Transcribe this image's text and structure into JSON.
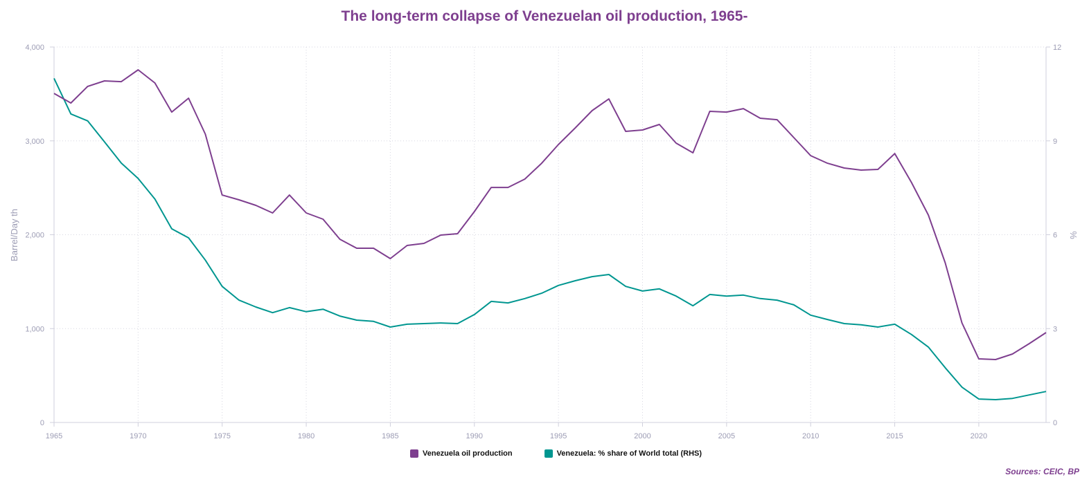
{
  "chart_data": {
    "type": "line",
    "title": "The long-term collapse of Venezuelan oil production, 1965-",
    "ylabel": "Barrel/Day th",
    "y2label": "%",
    "xlim": [
      1965,
      2024
    ],
    "ylim": [
      0,
      4000
    ],
    "y2lim": [
      0,
      12
    ],
    "x_ticks": [
      1965,
      1970,
      1975,
      1980,
      1985,
      1990,
      1995,
      2000,
      2005,
      2010,
      2015,
      2020
    ],
    "y_ticks": [
      "0",
      "1,000",
      "2,000",
      "3,000",
      "4,000"
    ],
    "y2_ticks": [
      "0",
      "3",
      "6",
      "9",
      "12"
    ],
    "grid": true,
    "legend_position": "bottom",
    "x": [
      1965,
      1966,
      1967,
      1968,
      1969,
      1970,
      1971,
      1972,
      1973,
      1974,
      1975,
      1976,
      1977,
      1978,
      1979,
      1980,
      1981,
      1982,
      1983,
      1984,
      1985,
      1986,
      1987,
      1988,
      1989,
      1990,
      1991,
      1992,
      1993,
      1994,
      1995,
      1996,
      1997,
      1998,
      1999,
      2000,
      2001,
      2002,
      2003,
      2004,
      2005,
      2006,
      2007,
      2008,
      2009,
      2010,
      2011,
      2012,
      2013,
      2014,
      2015,
      2016,
      2017,
      2018,
      2019,
      2020,
      2021,
      2022,
      2023,
      2024
    ],
    "series": [
      {
        "name": "Venezuela oil production",
        "axis": "left",
        "color": "#7e3f8f",
        "values": [
          3506,
          3403,
          3580,
          3639,
          3631,
          3757,
          3617,
          3307,
          3455,
          3072,
          2423,
          2372,
          2313,
          2232,
          2423,
          2232,
          2166,
          1952,
          1856,
          1856,
          1746,
          1886,
          1908,
          1996,
          2011,
          2247,
          2504,
          2504,
          2593,
          2762,
          2961,
          3138,
          3322,
          3447,
          3101,
          3116,
          3175,
          2976,
          2873,
          3315,
          3307,
          3344,
          3241,
          3226,
          3035,
          2843,
          2762,
          2711,
          2689,
          2696,
          2865,
          2556,
          2210,
          1702,
          1061,
          678,
          670,
          729,
          840,
          958
        ]
      },
      {
        "name": "Venezuela: % share of World total (RHS)",
        "axis": "right",
        "color": "#009690",
        "values": [
          11.0,
          9.86,
          9.64,
          8.97,
          8.29,
          7.8,
          7.14,
          6.19,
          5.9,
          5.19,
          4.35,
          3.91,
          3.69,
          3.51,
          3.67,
          3.54,
          3.62,
          3.4,
          3.27,
          3.23,
          3.05,
          3.14,
          3.16,
          3.18,
          3.16,
          3.45,
          3.87,
          3.82,
          3.96,
          4.13,
          4.38,
          4.53,
          4.66,
          4.73,
          4.35,
          4.2,
          4.27,
          4.04,
          3.73,
          4.09,
          4.04,
          4.07,
          3.96,
          3.91,
          3.76,
          3.43,
          3.29,
          3.16,
          3.12,
          3.05,
          3.14,
          2.81,
          2.41,
          1.75,
          1.13,
          0.75,
          0.73,
          0.77,
          0.88,
          0.99
        ]
      }
    ],
    "source": "Sources: CEIC, BP"
  }
}
